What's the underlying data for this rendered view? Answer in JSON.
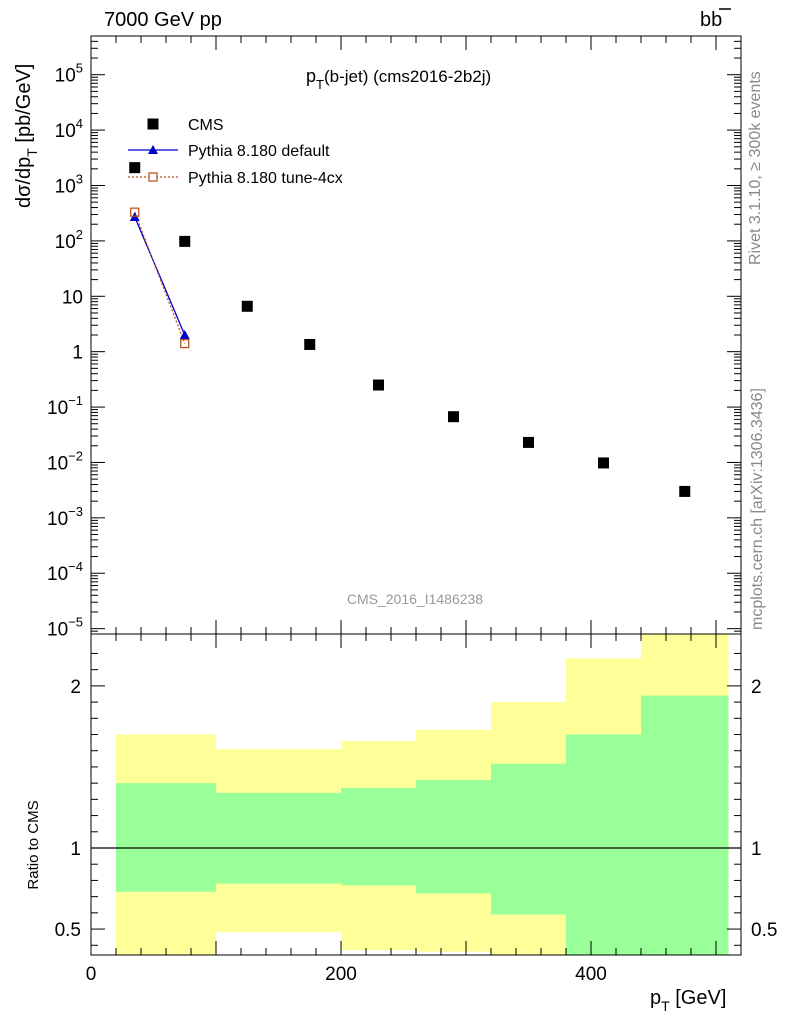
{
  "header": {
    "left": "7000 GeV pp",
    "right_main": "b",
    "right_bar": "b"
  },
  "side_text": {
    "rivet": "Rivet 3.1.10, ≥ 300k events",
    "mcplots": "mcplots.cern.ch [arXiv:1306.3436]"
  },
  "chart_data": [
    {
      "type": "scatter",
      "title_main": "p",
      "title_sub": "T",
      "title_rest": "(b-jet) (cms2016-2b2j)",
      "watermark": "CMS_2016_I1486238",
      "ylabel_pre": "dσ/dp",
      "ylabel_sub": "T",
      "ylabel_post": " [pb/GeV]",
      "yscale": "log",
      "ylim": [
        8e-06,
        500000
      ],
      "xlim": [
        0,
        520
      ],
      "yticks": [
        {
          "value": 100000,
          "base": "10",
          "exp": "5"
        },
        {
          "value": 10000,
          "base": "10",
          "exp": "4"
        },
        {
          "value": 1000,
          "base": "10",
          "exp": "3"
        },
        {
          "value": 100,
          "base": "10",
          "exp": "2"
        },
        {
          "value": 10,
          "base": "10",
          "exp": ""
        },
        {
          "value": 1,
          "base": "1",
          "exp": ""
        },
        {
          "value": 0.1,
          "base": "10",
          "exp": "−1"
        },
        {
          "value": 0.01,
          "base": "10",
          "exp": "−2"
        },
        {
          "value": 0.001,
          "base": "10",
          "exp": "−3"
        },
        {
          "value": 0.0001,
          "base": "10",
          "exp": "−4"
        },
        {
          "value": 1e-05,
          "base": "10",
          "exp": "−5"
        }
      ],
      "legend_position": "top-left",
      "series": [
        {
          "name": "CMS",
          "marker": "square",
          "color": "#000000",
          "x": [
            35,
            75,
            125,
            175,
            230,
            290,
            350,
            410,
            475
          ],
          "y": [
            2100,
            98,
            6.6,
            1.35,
            0.25,
            0.067,
            0.023,
            0.0098,
            0.003
          ]
        },
        {
          "name": "Pythia 8.180 default",
          "marker": "triangle",
          "color": "#0000cc",
          "x": [
            35,
            75
          ],
          "y": [
            270,
            2.0
          ]
        },
        {
          "name": "Pythia 8.180 tune-4cx",
          "marker": "open-square",
          "color": "#bb5522",
          "x": [
            35,
            75
          ],
          "y": [
            330,
            1.4
          ]
        }
      ]
    },
    {
      "type": "area",
      "ylabel": "Ratio to CMS",
      "xlabel_main": "p",
      "xlabel_sub": "T",
      "xlabel_post": " [GeV]",
      "xlim": [
        0,
        520
      ],
      "ylim": [
        0.34,
        2.32
      ],
      "xticks": [
        0,
        200,
        400
      ],
      "yticks": [
        {
          "value": 0.5,
          "label": "0.5"
        },
        {
          "value": 1,
          "label": "1"
        },
        {
          "value": 2,
          "label": "2"
        }
      ],
      "reference_line": 1,
      "bins": [
        {
          "x0": 20,
          "x1": 100,
          "green": [
            0.73,
            1.4
          ],
          "yellow": [
            0.34,
            1.7
          ]
        },
        {
          "x0": 100,
          "x1": 200,
          "green": [
            0.78,
            1.34
          ],
          "yellow": [
            0.48,
            1.61
          ]
        },
        {
          "x0": 200,
          "x1": 260,
          "green": [
            0.77,
            1.37
          ],
          "yellow": [
            0.37,
            1.66
          ]
        },
        {
          "x0": 260,
          "x1": 320,
          "green": [
            0.72,
            1.42
          ],
          "yellow": [
            0.36,
            1.73
          ]
        },
        {
          "x0": 320,
          "x1": 380,
          "green": [
            0.59,
            1.52
          ],
          "yellow": [
            0.34,
            1.9
          ]
        },
        {
          "x0": 380,
          "x1": 440,
          "green": [
            0.34,
            1.7
          ],
          "yellow": [
            0.34,
            2.17
          ]
        },
        {
          "x0": 440,
          "x1": 510,
          "green": [
            0.34,
            1.94
          ],
          "yellow": [
            0.34,
            2.32
          ]
        }
      ],
      "colors": {
        "green": "#99ff99",
        "yellow": "#ffff99"
      }
    }
  ]
}
